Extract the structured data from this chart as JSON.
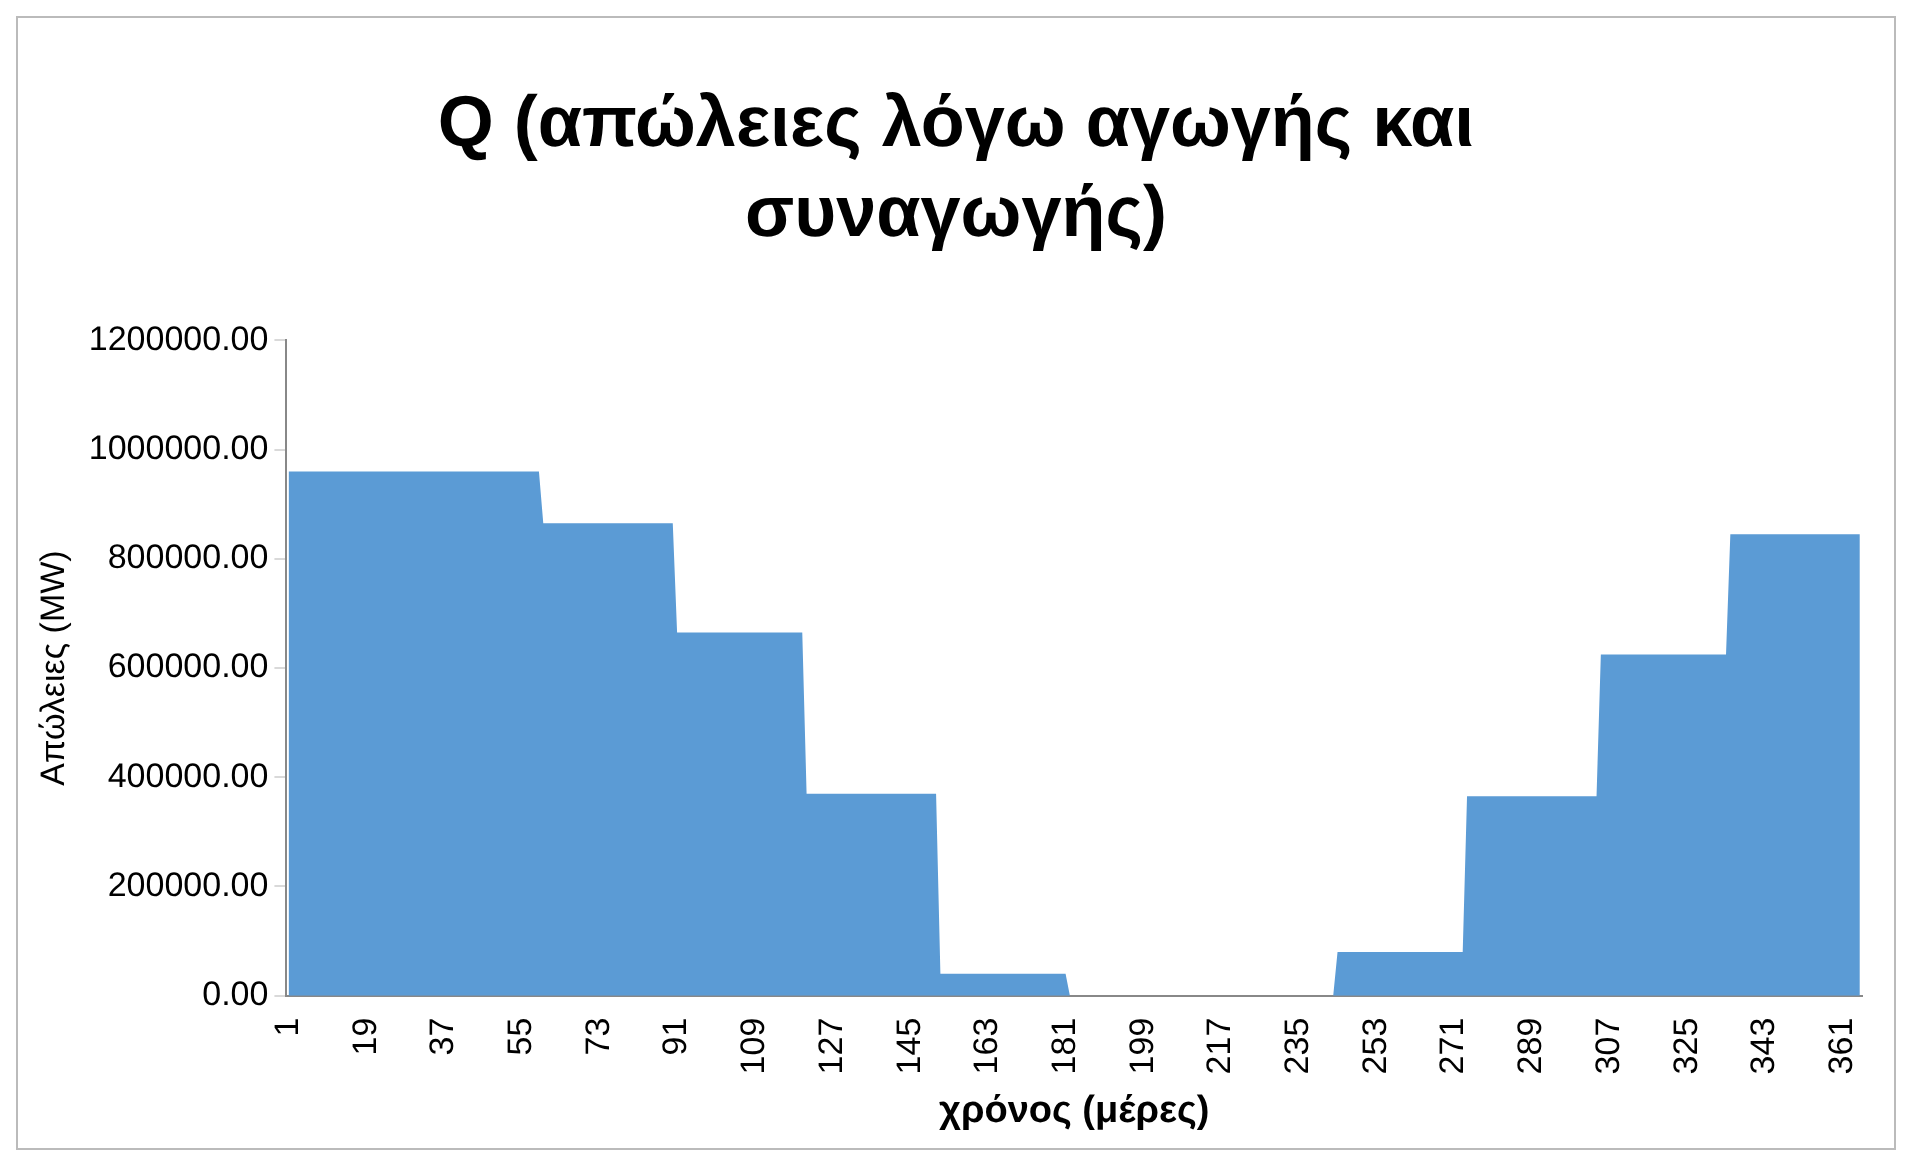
{
  "chart_data": {
    "type": "area",
    "title": "Q (απώλειες λόγω αγωγής και συναγωγής)",
    "xlabel": "χρόνος (μέρες)",
    "ylabel": "Απώλειες (MW)",
    "x": [
      1,
      59,
      60,
      90,
      91,
      120,
      121,
      151,
      152,
      181,
      182,
      243,
      244,
      273,
      274,
      304,
      305,
      334,
      335,
      365
    ],
    "series": [
      {
        "color": "#5b9bd5",
        "values": [
          960000,
          960000,
          865000,
          865000,
          665000,
          665000,
          370000,
          370000,
          40000,
          40000,
          0,
          0,
          80000,
          80000,
          365000,
          365000,
          625000,
          625000,
          845000,
          845000
        ]
      }
    ],
    "xlim": [
      0.5,
      365.5
    ],
    "xticks": [
      1,
      19,
      37,
      55,
      73,
      91,
      109,
      127,
      145,
      163,
      181,
      199,
      217,
      235,
      253,
      271,
      289,
      307,
      325,
      343,
      361
    ],
    "ylim": [
      0,
      1200000
    ],
    "yticks": [
      {
        "value": 0,
        "label": "0.00"
      },
      {
        "value": 200000,
        "label": "200000.00"
      },
      {
        "value": 400000,
        "label": "400000.00"
      },
      {
        "value": 600000,
        "label": "600000.00"
      },
      {
        "value": 800000,
        "label": "800000.00"
      },
      {
        "value": 1000000,
        "label": "1000000.00"
      },
      {
        "value": 1200000,
        "label": "1200000.00"
      }
    ],
    "grid": false,
    "legend": false
  }
}
